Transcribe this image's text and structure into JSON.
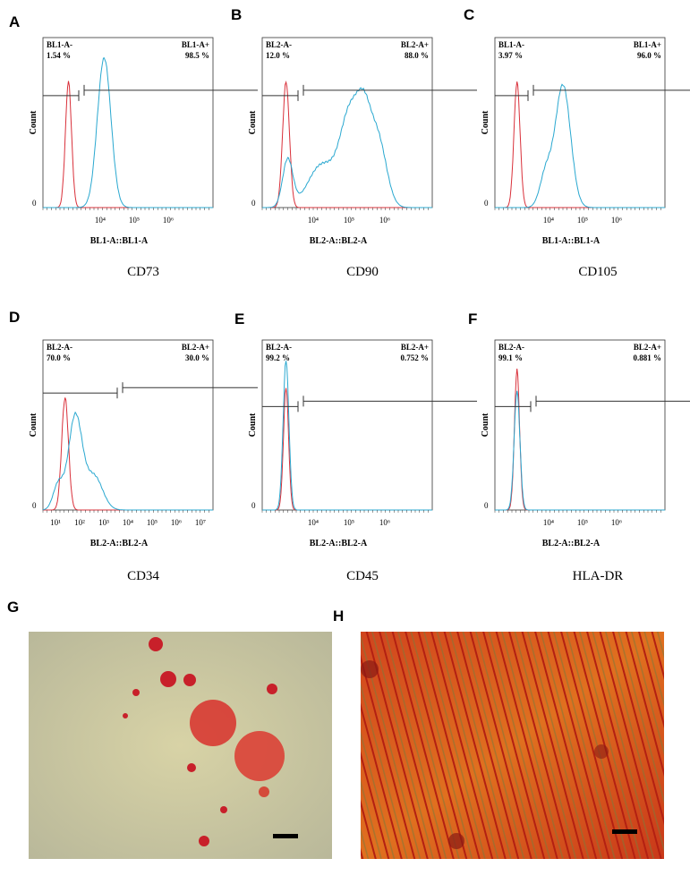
{
  "count_label": "Count",
  "zero_label": "0",
  "panels": [
    {
      "letter": "A",
      "neg_label": "BL1-A-",
      "neg_pct": "1.54 %",
      "pos_label": "BL1-A+",
      "pos_pct": "98.5 %",
      "x_label": "BL1-A::BL1-A",
      "x_ticks": [
        "10⁴",
        "10⁵",
        "10⁶"
      ],
      "marker": "CD73"
    },
    {
      "letter": "B",
      "neg_label": "BL2-A-",
      "neg_pct": "12.0 %",
      "pos_label": "BL2-A+",
      "pos_pct": "88.0 %",
      "x_label": "BL2-A::BL2-A",
      "x_ticks": [
        "10⁴",
        "10⁵",
        "10⁶"
      ],
      "marker": "CD90"
    },
    {
      "letter": "C",
      "neg_label": "BL1-A-",
      "neg_pct": "3.97 %",
      "pos_label": "BL1-A+",
      "pos_pct": "96.0 %",
      "x_label": "BL1-A::BL1-A",
      "x_ticks": [
        "10⁴",
        "10⁵",
        "10⁶"
      ],
      "marker": "CD105"
    },
    {
      "letter": "D",
      "neg_label": "BL2-A-",
      "neg_pct": "70.0 %",
      "pos_label": "BL2-A+",
      "pos_pct": "30.0 %",
      "x_label": "BL2-A::BL2-A",
      "x_ticks": [
        "10¹",
        "10²",
        "10³",
        "10⁴",
        "10⁵",
        "10⁶",
        "10⁷"
      ],
      "marker": "CD34"
    },
    {
      "letter": "E",
      "neg_label": "BL2-A-",
      "neg_pct": "99.2 %",
      "pos_label": "BL2-A+",
      "pos_pct": "0.752 %",
      "x_label": "BL2-A::BL2-A",
      "x_ticks": [
        "10⁴",
        "10⁵",
        "10⁶"
      ],
      "marker": "CD45"
    },
    {
      "letter": "F",
      "neg_label": "BL2-A-",
      "neg_pct": "99.1 %",
      "pos_label": "BL2-A+",
      "pos_pct": "0.881 %",
      "x_label": "BL2-A::BL2-A",
      "x_ticks": [
        "10⁴",
        "10⁵",
        "10⁶"
      ],
      "marker": "HLA-DR"
    }
  ],
  "images": [
    {
      "letter": "G"
    },
    {
      "letter": "H"
    }
  ]
}
